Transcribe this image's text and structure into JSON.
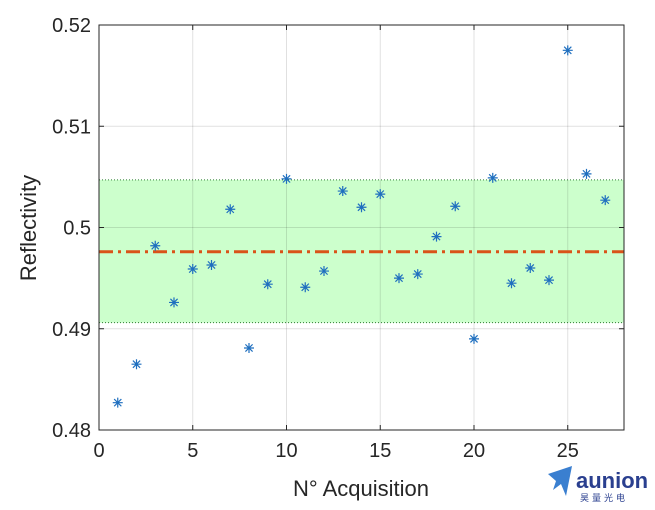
{
  "chart_data": {
    "type": "scatter",
    "xlabel": "N° Acquisition",
    "ylabel": "Reflectivity",
    "xlim": [
      0,
      28
    ],
    "ylim": [
      0.48,
      0.52
    ],
    "xticks": [
      0,
      5,
      10,
      15,
      20,
      25
    ],
    "yticks": [
      0.48,
      0.49,
      0.5,
      0.51,
      0.52
    ],
    "xtick_labels": [
      "0",
      "5",
      "10",
      "15",
      "20",
      "25"
    ],
    "ytick_labels": [
      "0.48",
      "0.49",
      "0.5",
      "0.51",
      "0.52"
    ],
    "grid": true,
    "marker": "asterisk",
    "marker_color": "#1f6fbf",
    "x": [
      1,
      2,
      3,
      4,
      5,
      6,
      7,
      8,
      9,
      10,
      11,
      12,
      13,
      14,
      15,
      16,
      17,
      18,
      19,
      20,
      21,
      22,
      23,
      24,
      25,
      26,
      27
    ],
    "y": [
      0.4827,
      0.4865,
      0.4982,
      0.4926,
      0.4959,
      0.4963,
      0.5018,
      0.4881,
      0.4944,
      0.5048,
      0.4941,
      0.4957,
      0.5036,
      0.502,
      0.5033,
      0.495,
      0.4954,
      0.4991,
      0.5021,
      0.489,
      0.5049,
      0.4945,
      0.496,
      0.4948,
      0.5175,
      0.5053,
      0.5027
    ],
    "mean_line": {
      "value": 0.4976,
      "color": "#d95319",
      "style": "dash-dot"
    },
    "band": {
      "lower": 0.4906,
      "upper": 0.5047,
      "color": "#ccffcc"
    }
  },
  "logo": {
    "name": "aunion",
    "subtitle": "昊量光电"
  }
}
